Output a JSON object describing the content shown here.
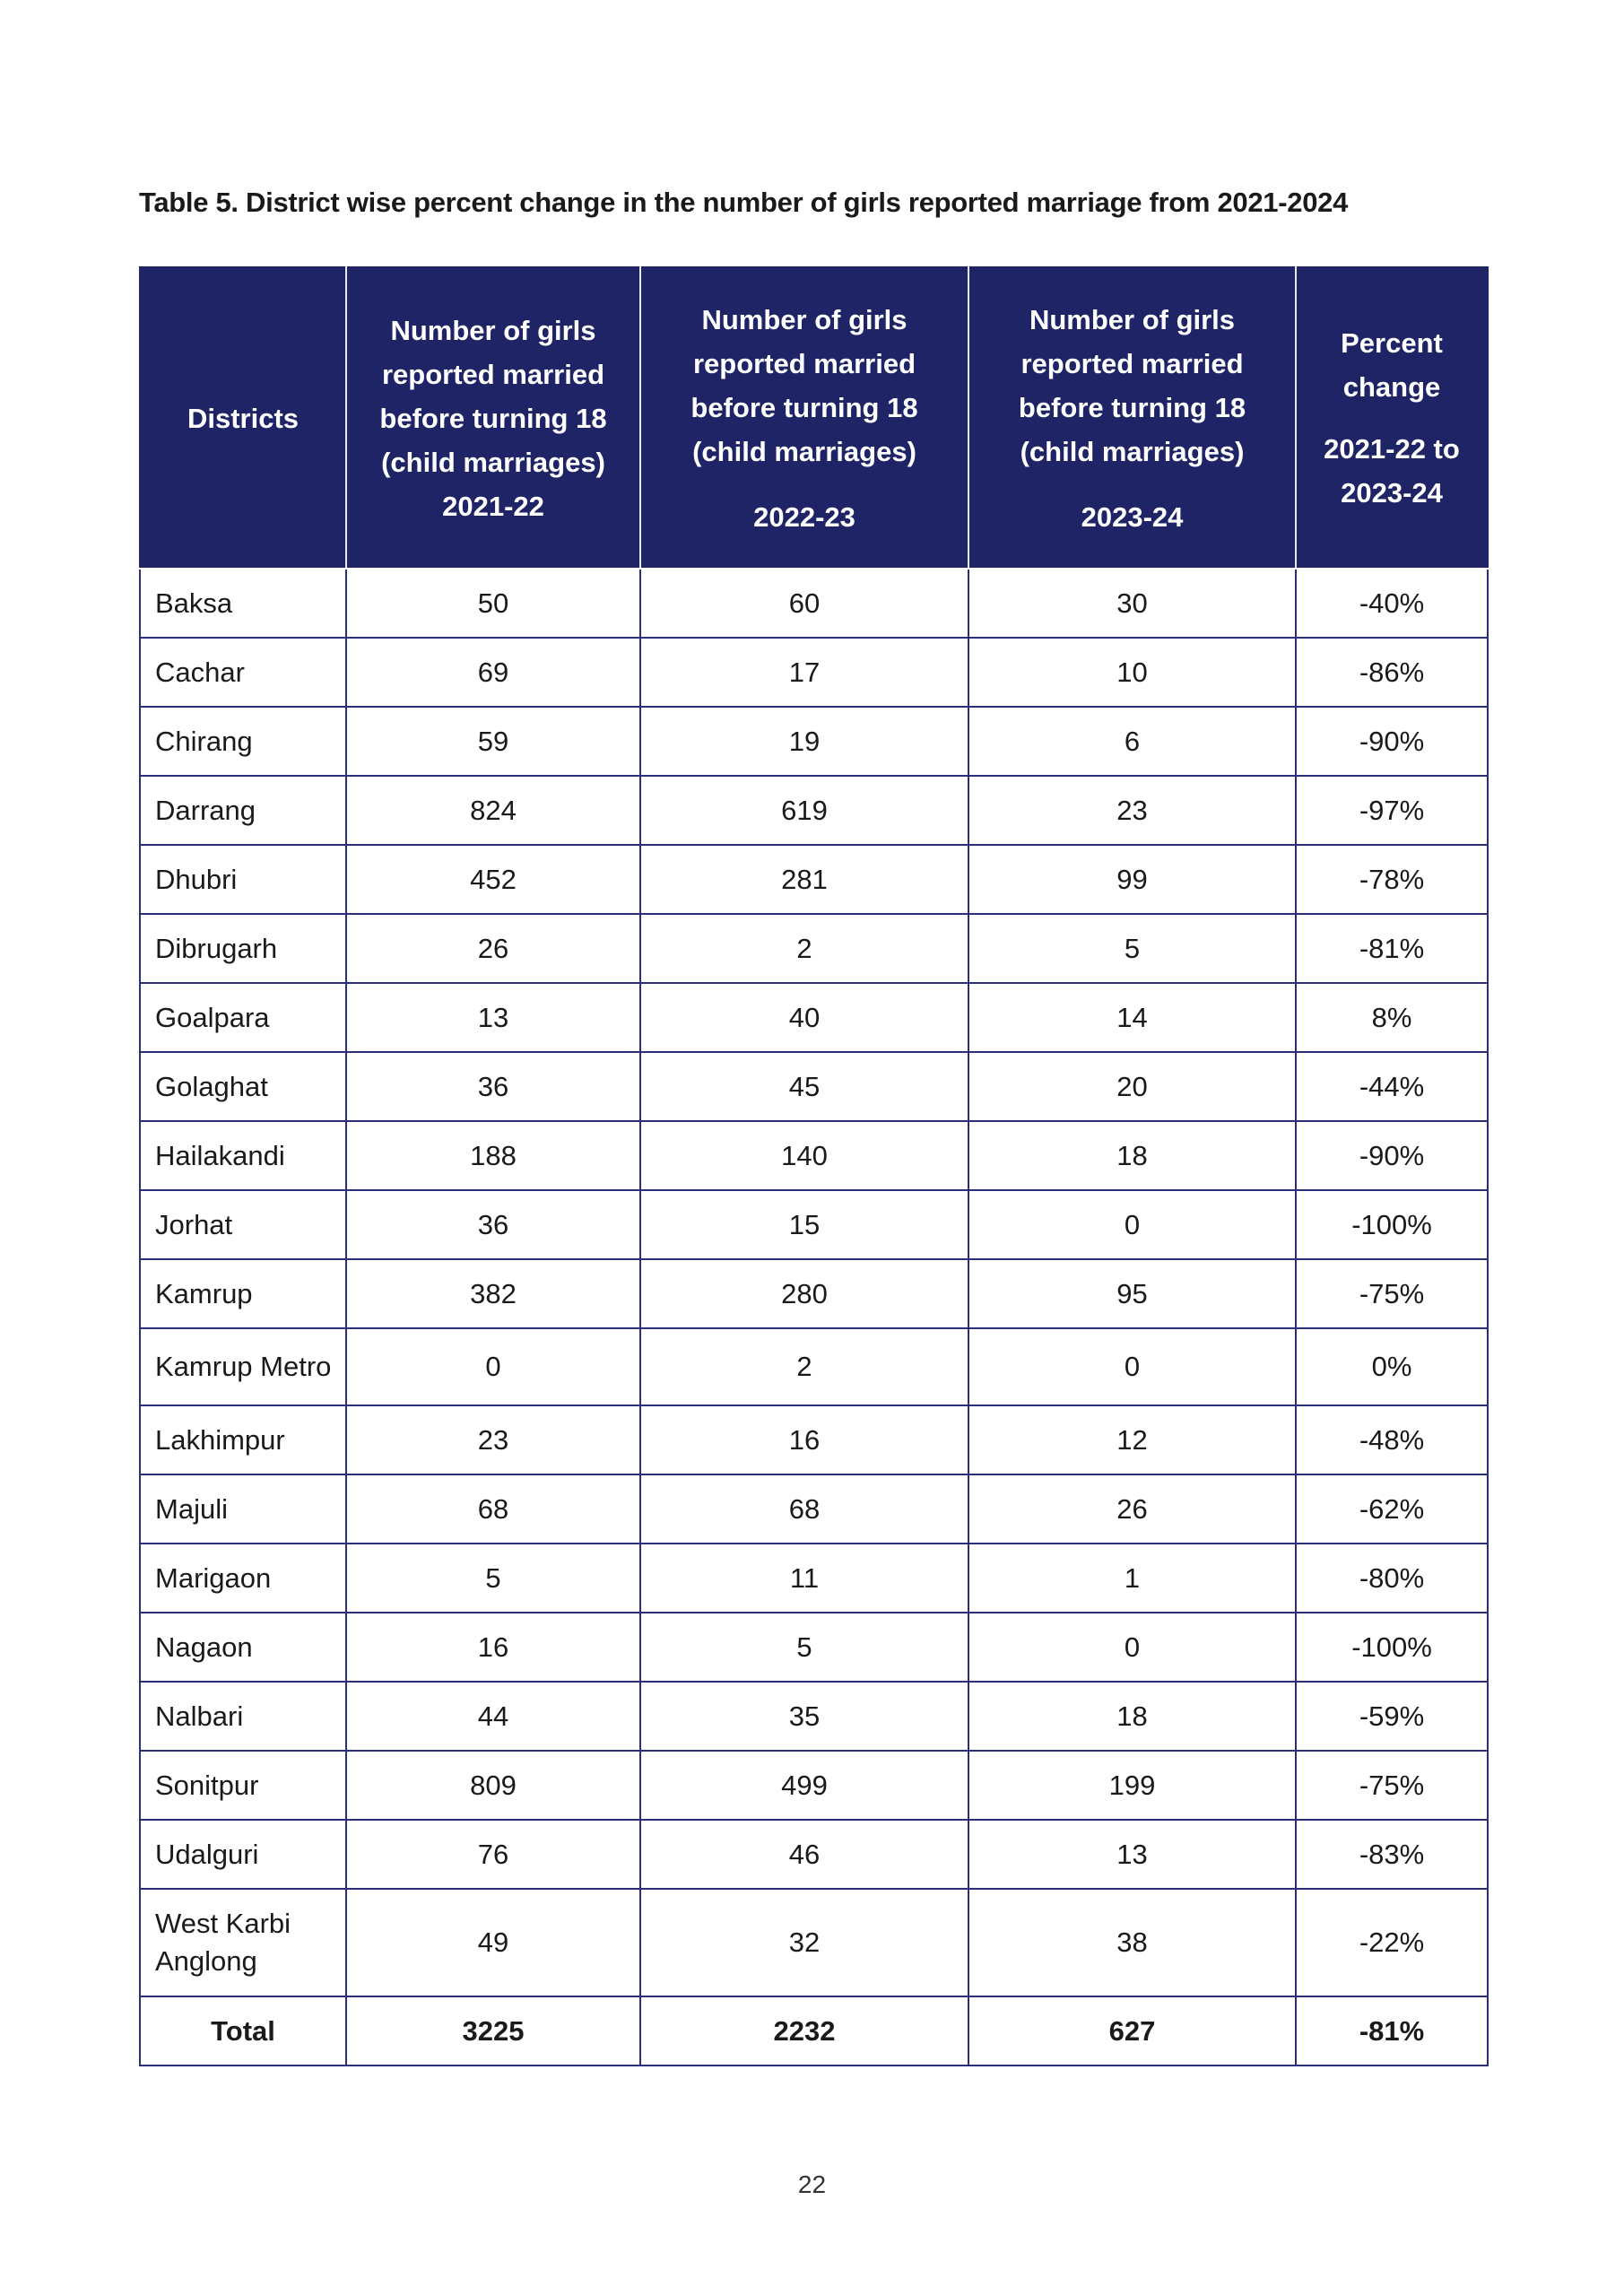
{
  "title": "Table 5. District wise percent change in the number of girls reported marriage from 2021-2024",
  "headers": [
    {
      "label": "Districts",
      "year": ""
    },
    {
      "label": "Number of girls reported married before turning 18 (child marriages)",
      "year": "2021-22"
    },
    {
      "label": "Number of girls reported married before turning 18 (child marriages)",
      "year": "2022-23"
    },
    {
      "label": "Number of girls reported married before turning 18 (child marriages)",
      "year": "2023-24"
    },
    {
      "label": "Percent change",
      "year": "2021-22 to 2023-24"
    }
  ],
  "header_color": "#1e2466",
  "rows": [
    [
      "Baksa",
      "50",
      "60",
      "30",
      "-40%"
    ],
    [
      "Cachar",
      "69",
      "17",
      "10",
      "-86%"
    ],
    [
      "Chirang",
      "59",
      "19",
      "6",
      "-90%"
    ],
    [
      "Darrang",
      "824",
      "619",
      "23",
      "-97%"
    ],
    [
      "Dhubri",
      "452",
      "281",
      "99",
      "-78%"
    ],
    [
      "Dibrugarh",
      "26",
      "2",
      "5",
      "-81%"
    ],
    [
      "Goalpara",
      "13",
      "40",
      "14",
      "8%"
    ],
    [
      "Golaghat",
      "36",
      "45",
      "20",
      "-44%"
    ],
    [
      "Hailakandi",
      "188",
      "140",
      "18",
      "-90%"
    ],
    [
      "Jorhat",
      "36",
      "15",
      "0",
      "-100%"
    ],
    [
      "Kamrup",
      "382",
      "280",
      "95",
      "-75%"
    ],
    [
      "Kamrup Metro",
      "0",
      "2",
      "0",
      "0%"
    ],
    [
      "Lakhimpur",
      "23",
      "16",
      "12",
      "-48%"
    ],
    [
      "Majuli",
      "68",
      "68",
      "26",
      "-62%"
    ],
    [
      "Marigaon",
      "5",
      "11",
      "1",
      "-80%"
    ],
    [
      "Nagaon",
      "16",
      "5",
      "0",
      "-100%"
    ],
    [
      "Nalbari",
      "44",
      "35",
      "18",
      "-59%"
    ],
    [
      "Sonitpur",
      "809",
      "499",
      "199",
      "-75%"
    ],
    [
      "Udalguri",
      "76",
      "46",
      "13",
      "-83%"
    ],
    [
      "West Karbi Anglong",
      "49",
      "32",
      "38",
      "-22%"
    ]
  ],
  "total": [
    "Total",
    "3225",
    "2232",
    "627",
    "-81%"
  ],
  "page_number": "22"
}
